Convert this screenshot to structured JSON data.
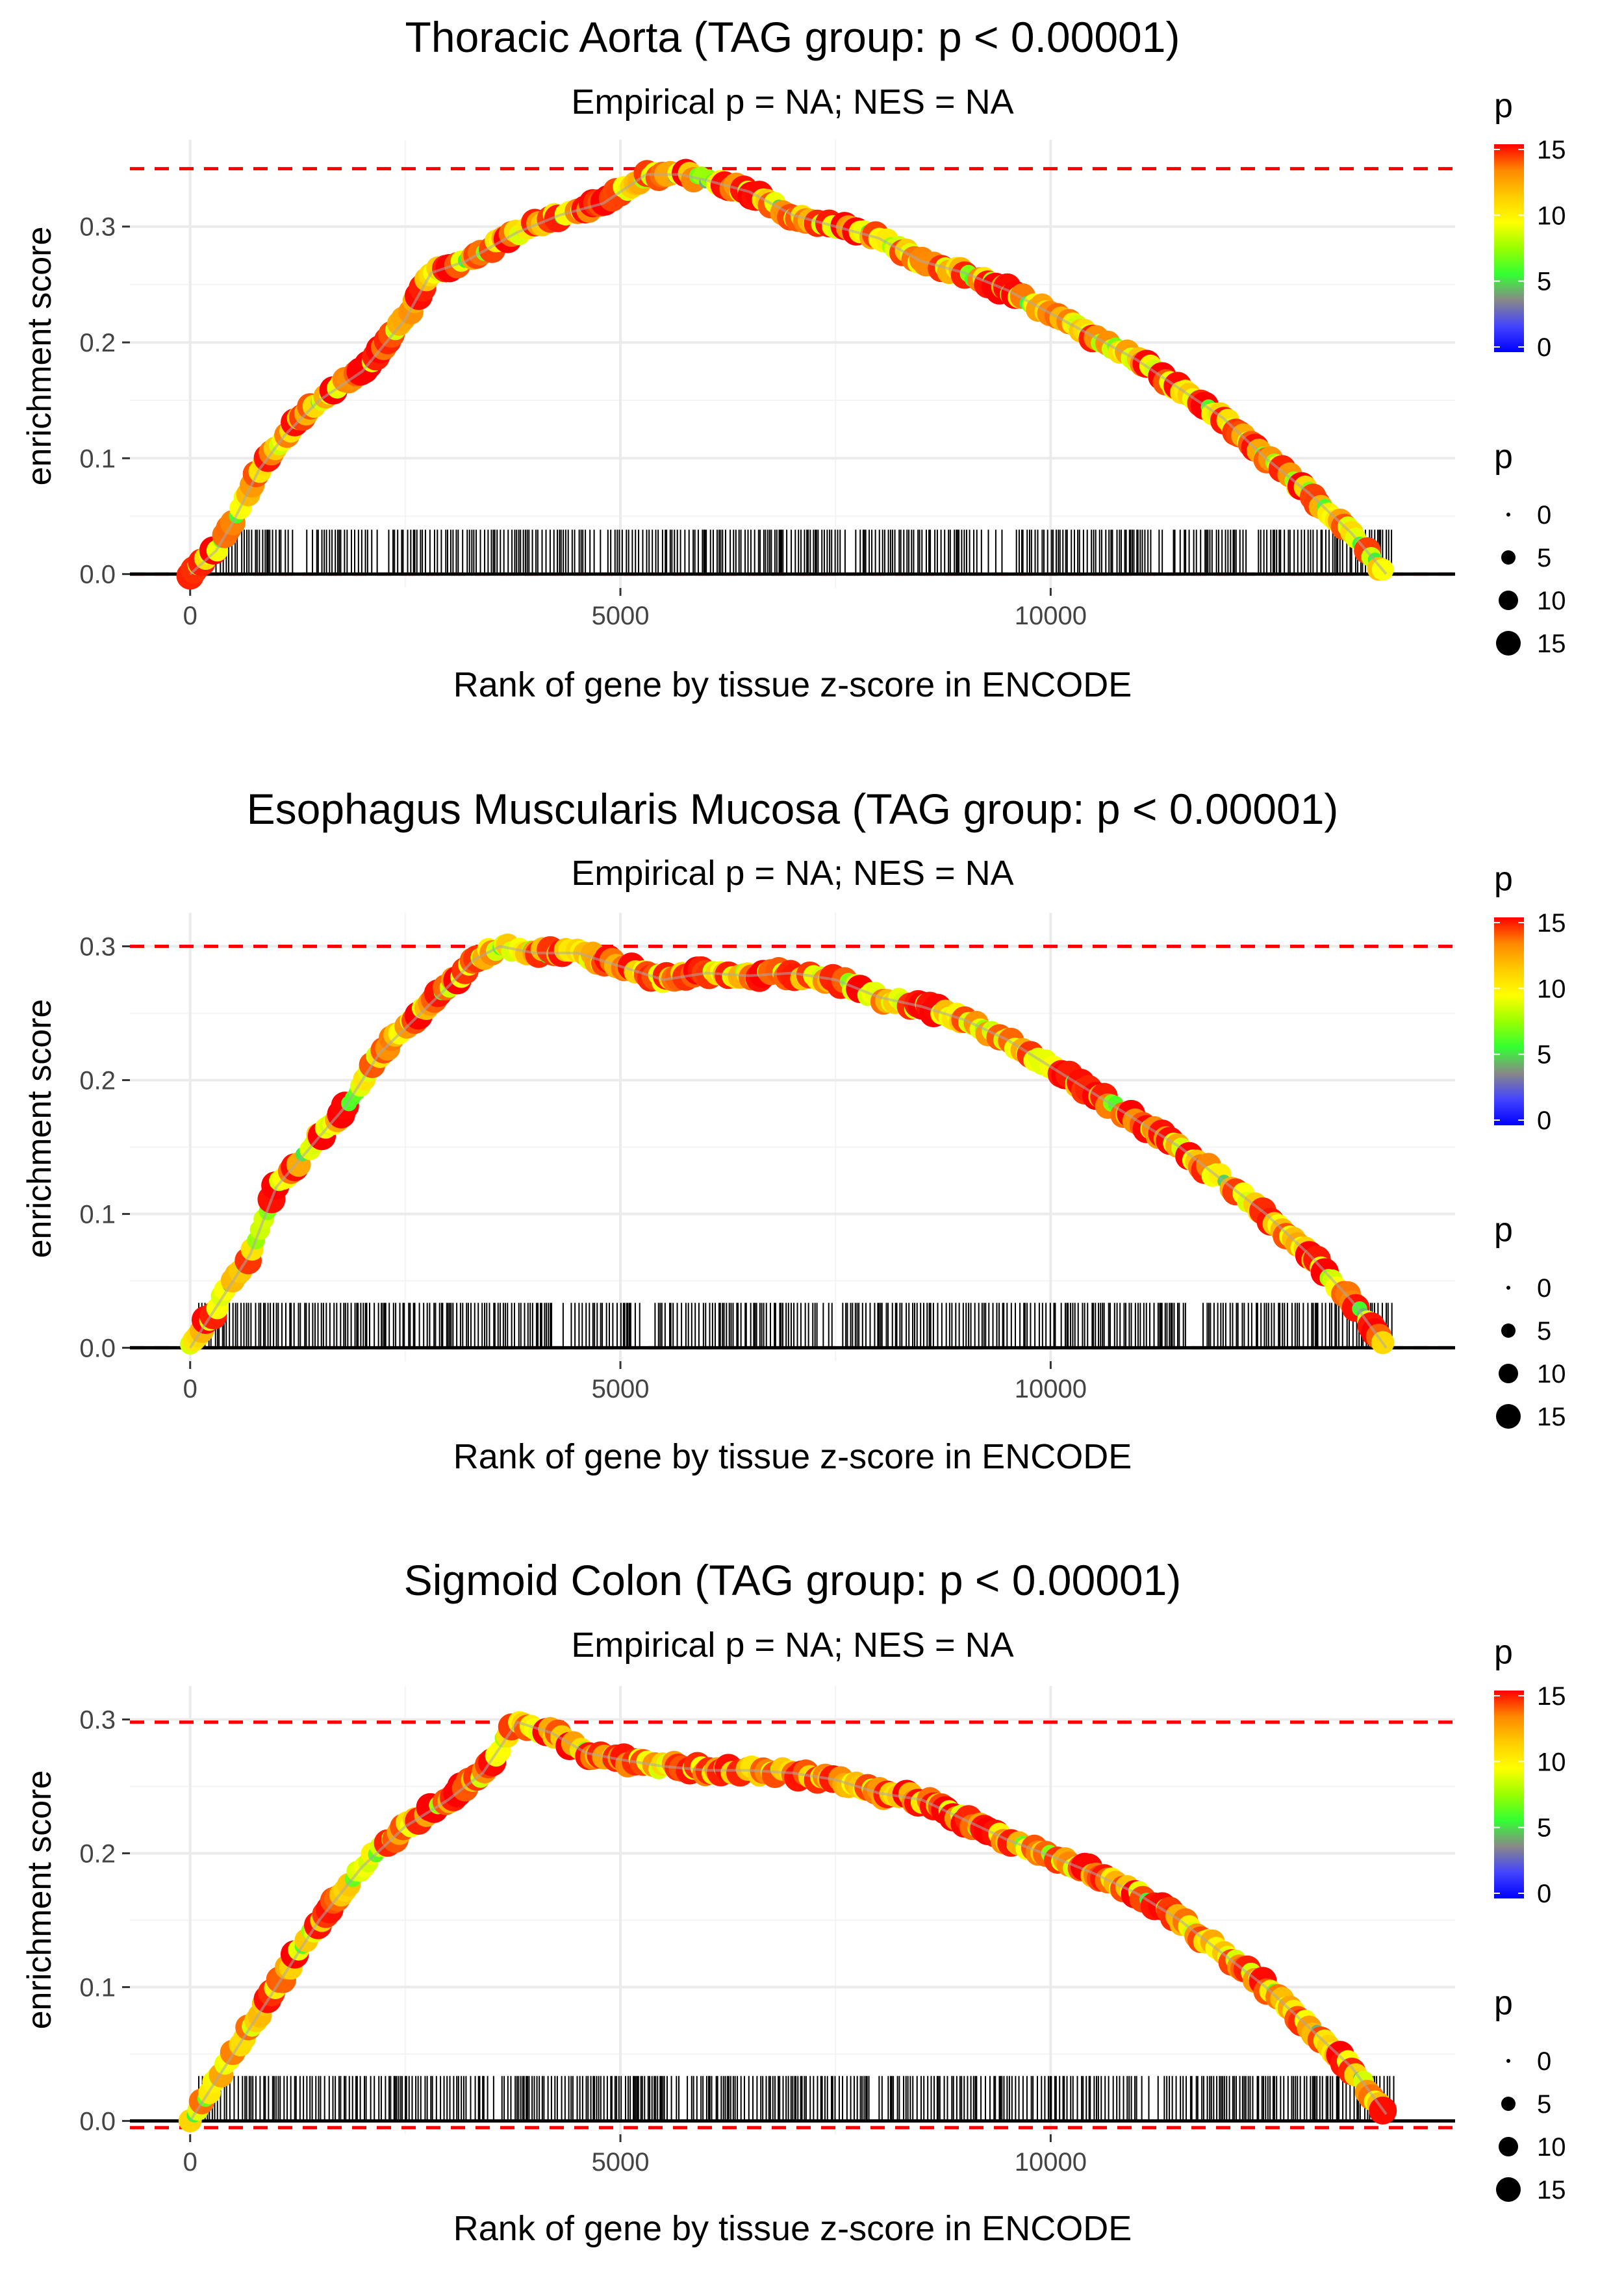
{
  "chart_data": [
    {
      "type": "line",
      "title": "Thoracic Aorta (TAG group: p < 0.00001)",
      "subtitle": "Empirical p = NA; NES = NA",
      "xlabel": "Rank of gene by tissue z-score in ENCODE",
      "ylabel": "enrichment score",
      "xlim": [
        -700,
        14700
      ],
      "ylim": [
        -0.012,
        0.375
      ],
      "x_ticks": [
        0,
        5000,
        10000
      ],
      "x_tick_labels": [
        "0",
        "5000",
        "10000"
      ],
      "y_ticks": [
        0.0,
        0.1,
        0.2,
        0.3
      ],
      "y_tick_labels": [
        "0.0",
        "0.1",
        "0.2",
        "0.3"
      ],
      "max_es": 0.35,
      "min_es": 0.0,
      "n_genes": 14000,
      "curve": {
        "x": [
          0,
          300,
          500,
          800,
          1100,
          1500,
          2000,
          2500,
          2800,
          3200,
          3800,
          4300,
          4800,
          5300,
          5700,
          6000,
          6500,
          7000,
          7500,
          8000,
          8500,
          9000,
          9500,
          10000,
          10500,
          11000,
          11500,
          12000,
          12500,
          13000,
          13500,
          13900
        ],
        "y": [
          0.0,
          0.02,
          0.045,
          0.09,
          0.12,
          0.15,
          0.175,
          0.22,
          0.26,
          0.27,
          0.295,
          0.31,
          0.32,
          0.345,
          0.345,
          0.34,
          0.33,
          0.31,
          0.3,
          0.29,
          0.27,
          0.26,
          0.245,
          0.225,
          0.205,
          0.185,
          0.16,
          0.135,
          0.1,
          0.07,
          0.035,
          0.0
        ]
      },
      "hits_start": 300,
      "hits_end": 14000,
      "hits_gaps": [
        [
          1200,
          1400
        ],
        [
          2100,
          2300
        ],
        [
          4700,
          4900
        ],
        [
          7500,
          7700
        ],
        [
          9200,
          9600
        ],
        [
          11200,
          11500
        ],
        [
          12100,
          12400
        ]
      ]
    },
    {
      "type": "line",
      "title": "Esophagus Muscularis Mucosa (TAG group: p < 0.00001)",
      "subtitle": "Empirical p = NA; NES = NA",
      "xlabel": "Rank of gene by tissue z-score in ENCODE",
      "ylabel": "enrichment score",
      "xlim": [
        -700,
        14700
      ],
      "ylim": [
        -0.01,
        0.325
      ],
      "x_ticks": [
        0,
        5000,
        10000
      ],
      "x_tick_labels": [
        "0",
        "5000",
        "10000"
      ],
      "y_ticks": [
        0.0,
        0.1,
        0.2,
        0.3
      ],
      "y_tick_labels": [
        "0.0",
        "0.1",
        "0.2",
        "0.3"
      ],
      "max_es": 0.3,
      "min_es": 0.0,
      "n_genes": 14000,
      "curve": {
        "x": [
          0,
          200,
          400,
          700,
          1000,
          1400,
          1800,
          2200,
          2600,
          3000,
          3300,
          3600,
          4000,
          4500,
          5000,
          5500,
          6000,
          6500,
          7000,
          7500,
          8000,
          8500,
          9000,
          9500,
          10000,
          10500,
          11000,
          11500,
          12000,
          12500,
          13000,
          13500,
          13900
        ],
        "y": [
          0.0,
          0.02,
          0.04,
          0.07,
          0.12,
          0.15,
          0.18,
          0.22,
          0.245,
          0.27,
          0.29,
          0.3,
          0.295,
          0.295,
          0.285,
          0.275,
          0.28,
          0.278,
          0.28,
          0.275,
          0.262,
          0.255,
          0.245,
          0.23,
          0.21,
          0.19,
          0.17,
          0.15,
          0.125,
          0.1,
          0.07,
          0.035,
          0.0
        ]
      },
      "hits_start": 100,
      "hits_end": 14000,
      "hits_gaps": [
        [
          4200,
          4400
        ],
        [
          5200,
          5400
        ],
        [
          7300,
          7600
        ],
        [
          9900,
          10200
        ],
        [
          11600,
          11800
        ]
      ]
    },
    {
      "type": "line",
      "title": "Sigmoid Colon (TAG group: p < 0.00001)",
      "subtitle": "Empirical p = NA; NES = NA",
      "xlabel": "Rank of gene by tissue z-score in ENCODE",
      "ylabel": "enrichment score",
      "xlim": [
        -700,
        14700
      ],
      "ylim": [
        -0.01,
        0.325
      ],
      "x_ticks": [
        0,
        5000,
        10000
      ],
      "x_tick_labels": [
        "0",
        "5000",
        "10000"
      ],
      "y_ticks": [
        0.0,
        0.1,
        0.2,
        0.3
      ],
      "y_tick_labels": [
        "0.0",
        "0.1",
        "0.2",
        "0.3"
      ],
      "max_es": 0.298,
      "min_es": -0.005,
      "n_genes": 14000,
      "curve": {
        "x": [
          0,
          200,
          500,
          800,
          1100,
          1500,
          2000,
          2500,
          3000,
          3400,
          3800,
          4200,
          4600,
          5000,
          5500,
          6000,
          6500,
          7000,
          7500,
          8000,
          8500,
          9000,
          9500,
          10000,
          10500,
          11000,
          11500,
          12000,
          12500,
          13000,
          13500,
          13900
        ],
        "y": [
          0.0,
          0.02,
          0.05,
          0.08,
          0.11,
          0.15,
          0.19,
          0.22,
          0.24,
          0.26,
          0.298,
          0.29,
          0.275,
          0.27,
          0.265,
          0.262,
          0.262,
          0.26,
          0.255,
          0.245,
          0.24,
          0.225,
          0.21,
          0.198,
          0.185,
          0.17,
          0.15,
          0.125,
          0.1,
          0.07,
          0.04,
          0.005
        ]
      },
      "hits_start": 100,
      "hits_end": 14000,
      "hits_gaps": [
        [
          3400,
          3600
        ],
        [
          5600,
          5800
        ],
        [
          7900,
          8100
        ],
        [
          11000,
          11300
        ]
      ]
    }
  ],
  "legends": {
    "color_title": "p",
    "color_ticks": [
      "15",
      "10",
      "5",
      "0"
    ],
    "size_title": "p",
    "size_labels": [
      "0",
      "5",
      "10",
      "15"
    ],
    "colorbar_colors": [
      "#ff0000",
      "#ff8800",
      "#ffcc00",
      "#ffff00",
      "#99ff00",
      "#33ff33",
      "#888888",
      "#4444ff",
      "#0000ff"
    ]
  },
  "colors": {
    "threshold_line": "#ff0000",
    "hits": "#000000",
    "curve_gray": "#aaaaaa",
    "grid": "#ebebeb"
  }
}
